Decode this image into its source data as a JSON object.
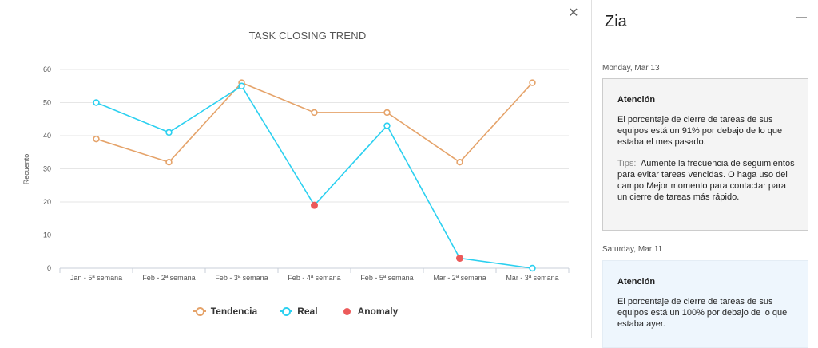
{
  "chart_pane": {
    "close_icon": "close-icon"
  },
  "chart_data": {
    "type": "line",
    "title": "TASK CLOSING TREND",
    "ylabel": "Recuento",
    "xlabel": "",
    "ylim": [
      0,
      60
    ],
    "yticks": [
      0,
      10,
      20,
      30,
      40,
      50,
      60
    ],
    "categories": [
      "Jan - 5ª semana",
      "Feb - 2ª semana",
      "Feb - 3ª semana",
      "Feb - 4ª semana",
      "Feb - 5ª semana",
      "Mar - 2ª semana",
      "Mar - 3ª semana"
    ],
    "series": [
      {
        "name": "Tendencia",
        "color": "#e5a36a",
        "values": [
          39,
          32,
          56,
          47,
          47,
          32,
          56
        ]
      },
      {
        "name": "Real",
        "color": "#2bd0f0",
        "values": [
          50,
          41,
          55,
          19,
          43,
          3,
          0
        ]
      }
    ],
    "anomalies": {
      "name": "Anomaly",
      "color": "#ec5a5a",
      "indices": [
        3,
        5
      ]
    },
    "legend": [
      "Tendencia",
      "Real",
      "Anomaly"
    ]
  },
  "zia": {
    "title": "Zia",
    "minimize_icon": "minimize-icon",
    "entries": [
      {
        "date": "Monday, Mar 13",
        "heading": "Atención",
        "body": "El porcentaje de cierre de tareas de sus equipos está un 91% por debajo de lo que estaba el mes pasado.",
        "tips_label": "Tips:",
        "tips_text": "Aumente la frecuencia de seguimientos para evitar tareas vencidas. O haga uso del campo Mejor momento para contactar para un cierre de tareas más rápido.",
        "bg": "#f4f4f4"
      },
      {
        "date": "Saturday, Mar 11",
        "heading": "Atención",
        "body": "El porcentaje de cierre de tareas de sus equipos está un 100% por debajo de lo que estaba ayer.",
        "bg": "#eef6fd"
      }
    ]
  }
}
